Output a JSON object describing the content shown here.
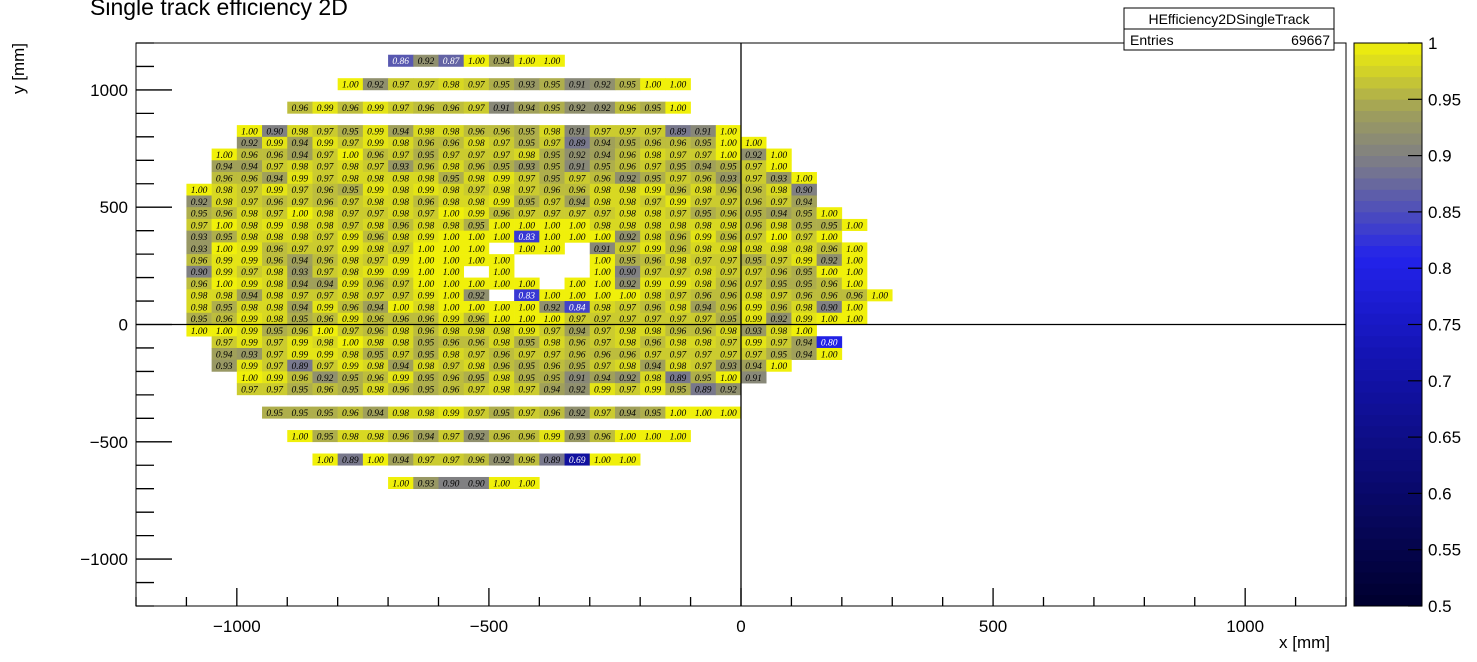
{
  "chart_data": {
    "type": "heatmap",
    "title": "Single track efficiency 2D",
    "xlabel": "x [mm]",
    "ylabel": "y [mm]",
    "xlim": [
      -1200,
      1200
    ],
    "ylim": [
      -1200,
      1200
    ],
    "x_ticks": [
      -1000,
      -500,
      0,
      500,
      1000
    ],
    "x_tick_labels": [
      "−1000",
      "−500",
      "0",
      "500",
      "1000"
    ],
    "y_ticks": [
      -1000,
      -500,
      0,
      500,
      1000
    ],
    "y_tick_labels": [
      "−1000",
      "−500",
      "0",
      "500",
      "1000"
    ],
    "colorbar": {
      "min": 0.5,
      "max": 1.0,
      "ticks": [
        0.5,
        0.55,
        0.6,
        0.65,
        0.7,
        0.75,
        0.8,
        0.85,
        0.9,
        0.95,
        1
      ],
      "tick_labels": [
        "0.5",
        "0.55",
        "0.6",
        "0.65",
        "0.7",
        "0.75",
        "0.8",
        "0.85",
        "0.9",
        "0.95",
        "1"
      ]
    },
    "stats": {
      "name": "HEfficiency2DSingleTrack",
      "entries_label": "Entries",
      "entries_value": "69667"
    },
    "bin_x0": -1100,
    "bin_dx": 50,
    "rows": [
      {
        "y": 1100,
        "v": [
          null,
          null,
          null,
          null,
          null,
          null,
          null,
          null,
          0.86,
          0.92,
          0.87,
          1.0,
          0.94,
          1.0,
          1.0
        ]
      },
      {
        "y": 1050,
        "v": [
          null,
          null,
          null,
          null,
          null,
          null,
          null,
          null,
          null,
          null,
          null,
          null,
          null,
          null,
          null,
          null,
          null,
          null,
          null,
          null,
          null
        ]
      },
      {
        "y": 1000,
        "v": [
          null,
          null,
          null,
          null,
          null,
          null,
          1.0,
          0.92,
          0.97,
          0.97,
          0.98,
          0.97,
          0.95,
          0.93,
          0.95,
          0.91,
          0.92,
          0.95,
          1.0,
          1.0
        ]
      },
      {
        "y": 950,
        "v": [
          null,
          null,
          null,
          null,
          null,
          null,
          null,
          null,
          null,
          null,
          null,
          null,
          null,
          null,
          null,
          null,
          null,
          null,
          null,
          null,
          null
        ]
      },
      {
        "y": 900,
        "v": [
          null,
          null,
          null,
          null,
          0.96,
          0.99,
          0.96,
          0.99,
          0.97,
          0.96,
          0.96,
          0.97,
          0.91,
          0.94,
          0.95,
          0.92,
          0.92,
          0.96,
          0.95,
          1.0
        ]
      },
      {
        "y": 850,
        "v": [
          null,
          null,
          null,
          null,
          null,
          null,
          null,
          null,
          null,
          null,
          null,
          null,
          null,
          null,
          null,
          null,
          null,
          null,
          null,
          null,
          null
        ]
      },
      {
        "y": 800,
        "v": [
          null,
          null,
          1.0,
          0.9,
          0.98,
          0.97,
          0.95,
          0.99,
          0.94,
          0.98,
          0.98,
          0.96,
          0.96,
          0.95,
          0.98,
          0.91,
          0.97,
          0.97,
          0.97,
          0.89,
          0.91,
          1.0
        ]
      },
      {
        "y": 750,
        "v": [
          null,
          null,
          0.92,
          0.99,
          0.94,
          0.99,
          0.97,
          0.99,
          0.98,
          0.96,
          0.96,
          0.98,
          0.97,
          0.95,
          0.97,
          0.89,
          0.94,
          0.95,
          0.96,
          0.96,
          0.95,
          1.0,
          1.0
        ]
      },
      {
        "y": 700,
        "v": [
          null,
          1.0,
          0.96,
          0.96,
          0.94,
          0.97,
          1.0,
          0.96,
          0.97,
          0.95,
          0.97,
          0.97,
          0.97,
          0.98,
          0.95,
          0.92,
          0.94,
          0.96,
          0.98,
          0.97,
          0.97,
          1.0,
          0.92,
          1.0
        ]
      },
      {
        "y": 650,
        "v": [
          null,
          0.94,
          0.94,
          0.97,
          0.98,
          0.97,
          0.98,
          0.97,
          0.93,
          0.96,
          0.98,
          0.96,
          0.95,
          0.93,
          0.95,
          0.91,
          0.95,
          0.96,
          0.97,
          0.95,
          0.94,
          0.95,
          0.97,
          1.0
        ]
      },
      {
        "y": 600,
        "v": [
          null,
          0.96,
          0.96,
          0.94,
          0.99,
          0.97,
          0.98,
          0.98,
          0.98,
          0.98,
          0.95,
          0.98,
          0.99,
          0.97,
          0.95,
          0.97,
          0.96,
          0.92,
          0.95,
          0.97,
          0.96,
          0.93,
          0.97,
          0.93,
          1.0
        ]
      },
      {
        "y": 550,
        "v": [
          1.0,
          0.98,
          0.97,
          0.99,
          0.97,
          0.96,
          0.95,
          0.99,
          0.98,
          0.99,
          0.98,
          0.97,
          0.98,
          0.97,
          0.96,
          0.96,
          0.98,
          0.98,
          0.99,
          0.96,
          0.98,
          0.96,
          0.96,
          0.98,
          0.9
        ]
      },
      {
        "y": 500,
        "v": [
          0.92,
          0.98,
          0.97,
          0.96,
          0.97,
          0.96,
          0.97,
          0.98,
          0.98,
          0.96,
          0.98,
          0.98,
          0.99,
          0.95,
          0.97,
          0.94,
          0.98,
          0.98,
          0.97,
          0.99,
          0.97,
          0.97,
          0.96,
          0.97,
          0.94
        ]
      },
      {
        "y": 450,
        "v": [
          0.95,
          0.96,
          0.98,
          0.97,
          1.0,
          0.98,
          0.97,
          0.97,
          0.98,
          0.97,
          1.0,
          0.99,
          0.96,
          0.97,
          0.97,
          0.97,
          0.97,
          0.98,
          0.98,
          0.97,
          0.95,
          0.96,
          0.95,
          0.94,
          0.95,
          1.0
        ]
      },
      {
        "y": 400,
        "v": [
          0.97,
          1.0,
          0.98,
          0.99,
          0.98,
          0.98,
          0.97,
          0.98,
          0.96,
          0.98,
          0.98,
          0.95,
          1.0,
          1.0,
          1.0,
          1.0,
          0.98,
          0.98,
          0.98,
          0.98,
          0.98,
          0.98,
          0.96,
          0.98,
          0.95,
          0.95,
          1.0
        ]
      },
      {
        "y": 350,
        "v": [
          0.93,
          0.95,
          0.98,
          0.98,
          0.98,
          0.97,
          0.99,
          0.96,
          0.98,
          0.99,
          1.0,
          1.0,
          1.0,
          0.83,
          1.0,
          1.0,
          1.0,
          0.92,
          0.98,
          0.96,
          0.99,
          0.96,
          0.97,
          1.0,
          0.97,
          1.0
        ]
      },
      {
        "y": 300,
        "v": [
          0.93,
          1.0,
          0.99,
          0.96,
          0.97,
          0.97,
          0.99,
          0.98,
          0.97,
          1.0,
          1.0,
          1.0,
          null,
          1.0,
          1.0,
          null,
          0.91,
          0.97,
          0.99,
          0.96,
          0.98,
          0.98,
          0.98,
          0.98,
          0.98,
          0.96,
          1.0
        ]
      },
      {
        "y": 250,
        "v": [
          0.96,
          0.99,
          0.99,
          0.96,
          0.94,
          0.96,
          0.98,
          0.97,
          0.99,
          1.0,
          1.0,
          1.0,
          1.0,
          null,
          null,
          null,
          1.0,
          0.95,
          0.96,
          0.98,
          0.97,
          0.97,
          0.95,
          0.97,
          0.99,
          0.92,
          1.0
        ]
      },
      {
        "y": 200,
        "v": [
          0.9,
          0.99,
          0.97,
          0.98,
          0.93,
          0.97,
          0.98,
          0.99,
          0.99,
          1.0,
          1.0,
          null,
          1.0,
          null,
          null,
          null,
          1.0,
          0.9,
          0.97,
          0.97,
          0.98,
          0.97,
          0.97,
          0.96,
          0.95,
          1.0,
          1.0
        ]
      },
      {
        "y": 150,
        "v": [
          0.96,
          1.0,
          0.99,
          0.98,
          0.94,
          0.94,
          0.99,
          0.96,
          0.97,
          1.0,
          1.0,
          1.0,
          1.0,
          1.0,
          null,
          1.0,
          1.0,
          0.92,
          0.99,
          0.99,
          0.98,
          0.96,
          0.97,
          0.95,
          0.95,
          0.96,
          1.0
        ]
      },
      {
        "y": 100,
        "v": [
          0.98,
          0.98,
          0.94,
          0.98,
          0.97,
          0.97,
          0.98,
          0.97,
          0.97,
          0.99,
          1.0,
          0.92,
          null,
          0.83,
          1.0,
          1.0,
          1.0,
          1.0,
          0.98,
          0.97,
          0.96,
          0.96,
          0.98,
          0.97,
          0.96,
          0.96,
          0.96,
          1.0
        ]
      },
      {
        "y": 50,
        "v": [
          0.98,
          0.95,
          0.98,
          0.98,
          0.94,
          0.99,
          0.96,
          0.94,
          1.0,
          0.98,
          1.0,
          1.0,
          1.0,
          1.0,
          0.92,
          0.84,
          0.98,
          0.97,
          0.96,
          0.98,
          0.94,
          0.96,
          0.99,
          0.96,
          0.98,
          0.9,
          1.0
        ]
      },
      {
        "y": 0,
        "v": [
          0.95,
          0.96,
          0.99,
          0.98,
          0.95,
          0.96,
          0.99,
          0.96,
          0.96,
          0.96,
          0.99,
          0.96,
          1.0,
          1.0,
          1.0,
          0.97,
          0.97,
          0.97,
          0.97,
          0.97,
          0.97,
          0.95,
          0.99,
          0.92,
          0.99,
          1.0,
          1.0
        ]
      },
      {
        "y": -50,
        "v": [
          1.0,
          1.0,
          0.99,
          0.95,
          0.96,
          1.0,
          0.97,
          0.96,
          0.98,
          0.96,
          0.98,
          0.98,
          0.98,
          0.99,
          0.97,
          0.94,
          0.97,
          0.98,
          0.98,
          0.96,
          0.96,
          0.98,
          0.93,
          0.98,
          1.0
        ]
      },
      {
        "y": -100,
        "v": [
          null,
          0.97,
          0.99,
          0.97,
          0.99,
          0.98,
          1.0,
          0.98,
          0.98,
          0.95,
          0.96,
          0.96,
          0.98,
          0.95,
          0.98,
          0.96,
          0.97,
          0.98,
          0.96,
          0.98,
          0.98,
          0.97,
          0.99,
          0.97,
          0.94,
          0.8
        ]
      },
      {
        "y": -150,
        "v": [
          null,
          0.94,
          0.93,
          0.97,
          0.99,
          0.99,
          0.98,
          0.95,
          0.97,
          0.95,
          0.98,
          0.97,
          0.96,
          0.97,
          0.97,
          0.96,
          0.96,
          0.96,
          0.97,
          0.97,
          0.97,
          0.97,
          0.97,
          0.95,
          0.94,
          1.0
        ]
      },
      {
        "y": -200,
        "v": [
          null,
          0.93,
          0.99,
          0.97,
          0.89,
          0.97,
          0.99,
          0.98,
          0.94,
          0.98,
          0.97,
          0.98,
          0.96,
          0.95,
          0.96,
          0.95,
          0.97,
          0.98,
          0.94,
          0.98,
          0.97,
          0.93,
          0.94,
          1.0
        ]
      },
      {
        "y": -250,
        "v": [
          null,
          null,
          1.0,
          0.99,
          0.96,
          0.92,
          0.95,
          0.96,
          0.99,
          0.95,
          0.96,
          0.95,
          0.98,
          0.95,
          0.95,
          0.91,
          0.94,
          0.92,
          0.98,
          0.89,
          0.95,
          1.0,
          0.91
        ]
      },
      {
        "y": -300,
        "v": [
          null,
          null,
          0.97,
          0.97,
          0.95,
          0.96,
          0.95,
          0.98,
          0.96,
          0.95,
          0.96,
          0.97,
          0.98,
          0.97,
          0.94,
          0.92,
          0.99,
          0.97,
          0.99,
          0.95,
          0.89,
          0.92
        ]
      },
      {
        "y": -350,
        "v": [
          null,
          null,
          null,
          null,
          null,
          null,
          null,
          null,
          null,
          null,
          null,
          null,
          null,
          null,
          null,
          null,
          null,
          null,
          null,
          null,
          null
        ]
      },
      {
        "y": -400,
        "v": [
          null,
          null,
          null,
          0.95,
          0.95,
          0.95,
          0.96,
          0.94,
          0.98,
          0.98,
          0.99,
          0.97,
          0.95,
          0.97,
          0.96,
          0.92,
          0.97,
          0.94,
          0.95,
          1.0,
          1.0,
          1.0
        ]
      },
      {
        "y": -450,
        "v": [
          null,
          null,
          null,
          null,
          null,
          null,
          null,
          null,
          null,
          null,
          null,
          null,
          null,
          null,
          null,
          null,
          null,
          null,
          null,
          null,
          null
        ]
      },
      {
        "y": -500,
        "v": [
          null,
          null,
          null,
          null,
          1.0,
          0.95,
          0.98,
          0.98,
          0.96,
          0.94,
          0.97,
          0.92,
          0.96,
          0.96,
          0.99,
          0.93,
          0.96,
          1.0,
          1.0,
          1.0
        ]
      },
      {
        "y": -550,
        "v": [
          null,
          null,
          null,
          null,
          null,
          null,
          null,
          null,
          null,
          null,
          null,
          null,
          null,
          null,
          null,
          null,
          null,
          null,
          null,
          null,
          null
        ]
      },
      {
        "y": -600,
        "v": [
          null,
          null,
          null,
          null,
          null,
          1.0,
          0.89,
          1.0,
          0.94,
          0.97,
          0.97,
          0.96,
          0.92,
          0.96,
          0.89,
          0.69,
          1.0,
          1.0
        ]
      },
      {
        "y": -650,
        "v": [
          null,
          null,
          null,
          null,
          null,
          null,
          null,
          null,
          null,
          null,
          null,
          null,
          null,
          null,
          null,
          null,
          null,
          null,
          null,
          null,
          null
        ]
      },
      {
        "y": -700,
        "v": [
          null,
          null,
          null,
          null,
          null,
          null,
          null,
          null,
          1.0,
          0.93,
          0.9,
          0.9,
          1.0,
          1.0
        ]
      }
    ]
  }
}
